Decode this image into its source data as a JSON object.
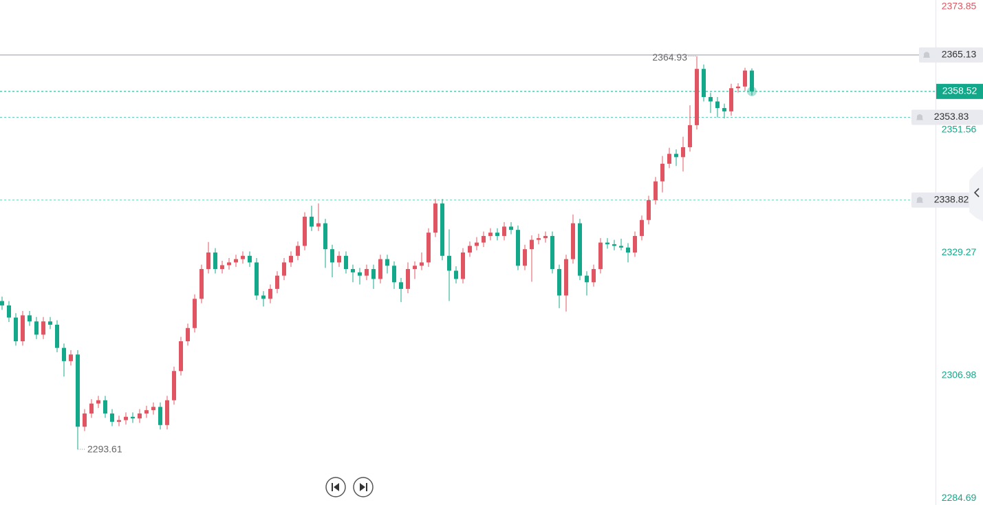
{
  "chart_data": {
    "type": "candlestick",
    "up_color": "#e05561",
    "down_color": "#13a88a",
    "ylim": [
      2283.5,
      2375.1
    ],
    "yticks": [
      2373.85,
      2351.56,
      2329.27,
      2306.98,
      2284.69
    ],
    "last_price": 2358.52,
    "price_line": 2365.13,
    "alerts": [
      2353.83,
      2338.82
    ],
    "max_annotation": 2364.93,
    "min_annotation": 2293.61,
    "candles": [
      [
        2320.5,
        2321.3,
        2318.9,
        2319.7
      ],
      [
        2319.7,
        2320.5,
        2316.7,
        2317.5
      ],
      [
        2317.5,
        2318.3,
        2312.4,
        2313.2
      ],
      [
        2313.2,
        2318.7,
        2312.4,
        2317.9
      ],
      [
        2317.9,
        2318.7,
        2316.0,
        2316.8
      ],
      [
        2316.8,
        2317.6,
        2313.6,
        2314.4
      ],
      [
        2314.4,
        2317.6,
        2313.6,
        2316.8
      ],
      [
        2316.8,
        2317.6,
        2315.4,
        2316.2
      ],
      [
        2316.2,
        2317.0,
        2311.2,
        2312.0
      ],
      [
        2312.0,
        2312.8,
        2306.8,
        2309.6
      ],
      [
        2309.6,
        2311.6,
        2308.8,
        2310.8
      ],
      [
        2310.8,
        2311.6,
        2293.61,
        2297.7
      ],
      [
        2297.7,
        2300.9,
        2296.9,
        2300.1
      ],
      [
        2300.1,
        2302.7,
        2299.3,
        2301.9
      ],
      [
        2301.9,
        2303.3,
        2301.1,
        2302.5
      ],
      [
        2302.5,
        2303.3,
        2299.3,
        2300.1
      ],
      [
        2300.1,
        2300.9,
        2297.8,
        2298.6
      ],
      [
        2298.6,
        2299.7,
        2297.8,
        2298.9
      ],
      [
        2298.9,
        2300.3,
        2298.1,
        2299.5
      ],
      [
        2299.5,
        2300.3,
        2298.4,
        2299.2
      ],
      [
        2299.2,
        2300.9,
        2298.4,
        2300.1
      ],
      [
        2300.1,
        2301.5,
        2299.3,
        2300.7
      ],
      [
        2300.7,
        2302.1,
        2299.9,
        2301.3
      ],
      [
        2301.3,
        2302.1,
        2297.2,
        2298.0
      ],
      [
        2298.0,
        2303.3,
        2297.2,
        2302.5
      ],
      [
        2302.5,
        2308.6,
        2301.7,
        2307.8
      ],
      [
        2307.8,
        2314.0,
        2307.0,
        2313.2
      ],
      [
        2313.2,
        2316.4,
        2312.4,
        2315.6
      ],
      [
        2315.6,
        2321.7,
        2314.8,
        2320.9
      ],
      [
        2320.9,
        2327.1,
        2320.1,
        2326.3
      ],
      [
        2326.3,
        2331.2,
        2325.5,
        2329.3
      ],
      [
        2329.3,
        2330.1,
        2325.5,
        2326.3
      ],
      [
        2326.3,
        2327.8,
        2325.5,
        2327.0
      ],
      [
        2327.0,
        2328.3,
        2326.2,
        2327.5
      ],
      [
        2327.5,
        2328.9,
        2326.7,
        2328.1
      ],
      [
        2328.1,
        2329.5,
        2327.3,
        2328.7
      ],
      [
        2328.7,
        2329.5,
        2326.7,
        2327.5
      ],
      [
        2327.5,
        2328.3,
        2320.7,
        2321.5
      ],
      [
        2321.5,
        2322.3,
        2319.5,
        2320.9
      ],
      [
        2320.9,
        2323.5,
        2320.1,
        2322.7
      ],
      [
        2322.7,
        2325.9,
        2321.9,
        2325.1
      ],
      [
        2325.1,
        2328.3,
        2324.3,
        2327.5
      ],
      [
        2327.5,
        2329.5,
        2326.7,
        2328.7
      ],
      [
        2328.7,
        2331.3,
        2327.9,
        2330.5
      ],
      [
        2330.5,
        2336.6,
        2329.7,
        2335.8
      ],
      [
        2335.8,
        2337.8,
        2333.2,
        2334.0
      ],
      [
        2334.0,
        2338.2,
        2333.2,
        2334.6
      ],
      [
        2334.6,
        2335.4,
        2326.5,
        2329.9
      ],
      [
        2329.9,
        2330.7,
        2324.8,
        2327.5
      ],
      [
        2327.5,
        2329.5,
        2326.7,
        2328.7
      ],
      [
        2328.7,
        2329.5,
        2325.5,
        2326.3
      ],
      [
        2326.3,
        2327.1,
        2323.9,
        2325.7
      ],
      [
        2325.7,
        2326.5,
        2323.5,
        2325.1
      ],
      [
        2325.1,
        2327.1,
        2324.3,
        2326.3
      ],
      [
        2326.3,
        2327.1,
        2322.7,
        2324.5
      ],
      [
        2324.5,
        2328.9,
        2323.7,
        2328.1
      ],
      [
        2328.1,
        2328.9,
        2325.5,
        2326.9
      ],
      [
        2326.9,
        2327.7,
        2322.7,
        2323.9
      ],
      [
        2323.9,
        2324.7,
        2320.3,
        2322.7
      ],
      [
        2322.7,
        2327.5,
        2321.9,
        2326.3
      ],
      [
        2326.3,
        2327.7,
        2324.5,
        2326.9
      ],
      [
        2326.9,
        2329.3,
        2326.1,
        2327.5
      ],
      [
        2327.5,
        2333.7,
        2326.7,
        2332.9
      ],
      [
        2332.9,
        2339.0,
        2332.1,
        2338.2
      ],
      [
        2338.2,
        2339.0,
        2327.9,
        2328.7
      ],
      [
        2328.7,
        2333.5,
        2320.5,
        2326.0
      ],
      [
        2326.0,
        2326.8,
        2323.7,
        2324.5
      ],
      [
        2324.5,
        2330.1,
        2323.7,
        2329.3
      ],
      [
        2329.3,
        2331.3,
        2328.5,
        2330.5
      ],
      [
        2330.5,
        2332.1,
        2329.7,
        2331.1
      ],
      [
        2331.1,
        2333.1,
        2330.3,
        2332.3
      ],
      [
        2332.3,
        2333.7,
        2331.5,
        2332.9
      ],
      [
        2332.9,
        2333.7,
        2331.5,
        2332.3
      ],
      [
        2332.3,
        2334.8,
        2331.5,
        2334.0
      ],
      [
        2334.0,
        2334.8,
        2332.6,
        2333.4
      ],
      [
        2333.4,
        2334.2,
        2326.1,
        2326.9
      ],
      [
        2326.9,
        2330.7,
        2326.1,
        2329.9
      ],
      [
        2329.9,
        2332.4,
        2324.0,
        2331.6
      ],
      [
        2331.6,
        2332.7,
        2330.8,
        2331.9
      ],
      [
        2331.9,
        2333.1,
        2331.1,
        2332.3
      ],
      [
        2332.3,
        2333.1,
        2325.5,
        2326.3
      ],
      [
        2326.3,
        2327.1,
        2319.2,
        2321.5
      ],
      [
        2321.5,
        2328.9,
        2318.6,
        2328.1
      ],
      [
        2328.1,
        2336.2,
        2327.3,
        2334.6
      ],
      [
        2334.6,
        2335.4,
        2324.3,
        2325.1
      ],
      [
        2325.1,
        2325.9,
        2321.5,
        2323.9
      ],
      [
        2323.9,
        2327.1,
        2323.1,
        2326.3
      ],
      [
        2326.3,
        2331.9,
        2325.5,
        2331.1
      ],
      [
        2331.1,
        2331.9,
        2330.0,
        2330.8
      ],
      [
        2330.8,
        2331.6,
        2329.7,
        2330.5
      ],
      [
        2330.5,
        2331.8,
        2329.7,
        2330.2
      ],
      [
        2330.2,
        2331.0,
        2327.5,
        2329.3
      ],
      [
        2329.3,
        2333.1,
        2328.5,
        2332.3
      ],
      [
        2332.3,
        2336.0,
        2331.5,
        2335.2
      ],
      [
        2335.2,
        2339.6,
        2334.4,
        2338.8
      ],
      [
        2338.8,
        2343.0,
        2338.0,
        2342.2
      ],
      [
        2342.2,
        2346.8,
        2340.2,
        2345.4
      ],
      [
        2345.4,
        2348.3,
        2344.6,
        2347.2
      ],
      [
        2347.2,
        2348.0,
        2345.0,
        2346.6
      ],
      [
        2346.6,
        2350.3,
        2344.0,
        2348.4
      ],
      [
        2348.4,
        2356.0,
        2347.6,
        2352.4
      ],
      [
        2352.4,
        2364.93,
        2351.6,
        2362.6
      ],
      [
        2362.6,
        2363.4,
        2356.7,
        2357.5
      ],
      [
        2357.5,
        2358.3,
        2354.6,
        2356.7
      ],
      [
        2356.7,
        2357.5,
        2353.8,
        2355.5
      ],
      [
        2355.5,
        2356.3,
        2353.6,
        2354.9
      ],
      [
        2354.9,
        2359.9,
        2354.1,
        2359.1
      ],
      [
        2359.1,
        2360.0,
        2358.3,
        2359.4
      ],
      [
        2359.4,
        2362.8,
        2358.6,
        2362.3
      ],
      [
        2362.3,
        2362.7,
        2357.8,
        2358.52
      ]
    ]
  }
}
